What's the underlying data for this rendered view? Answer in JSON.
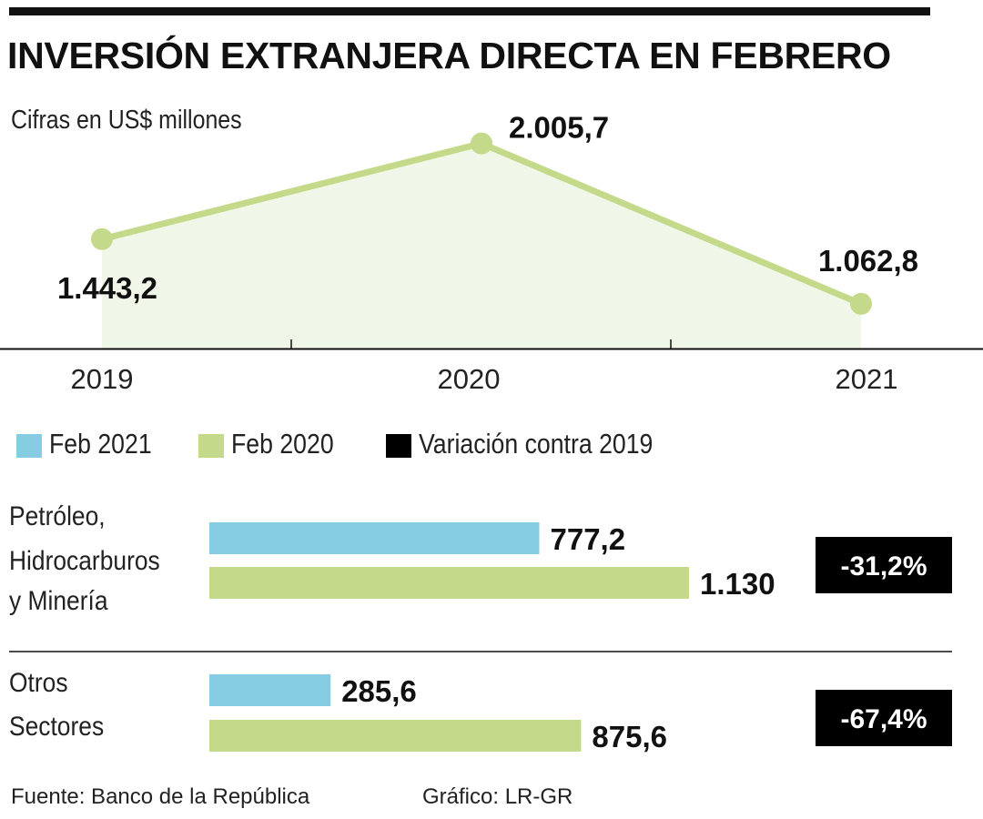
{
  "header": {
    "title": "INVERSIÓN EXTRANJERA DIRECTA EN FEBRERO",
    "subtitle": "Cifras en US$ millones"
  },
  "legend": {
    "items": [
      {
        "label": "Feb 2021",
        "color": "#86cde3"
      },
      {
        "label": "Feb 2020",
        "color": "#c4d98a"
      },
      {
        "label": "Variación contra 2019",
        "color": "#000000"
      }
    ]
  },
  "footer": {
    "source": "Fuente: Banco de la República",
    "credit": "Gráfico: LR-GR"
  },
  "colors": {
    "line": "#c4d98a",
    "area_fill": "#f1f7e8",
    "feb_2021": "#86cde3",
    "feb_2020": "#c4d98a",
    "variation_box": "#000000",
    "text": "#111111"
  },
  "chart_data": [
    {
      "type": "line",
      "x": [
        "2019",
        "2020",
        "2021"
      ],
      "series": [
        {
          "values": [
            1443.2,
            2005.7,
            1062.8
          ],
          "labels": [
            "1.443,2",
            "2.005,7",
            "1.062,8"
          ]
        }
      ],
      "ylim": [
        800,
        2100
      ],
      "grid": false
    },
    {
      "type": "bar",
      "orientation": "horizontal",
      "categories": [
        "Petróleo, Hidrocarburos y Minería",
        "Otros Sectores"
      ],
      "category_lines": [
        [
          "Petróleo,",
          "Hidrocarburos",
          "y Minería"
        ],
        [
          "Otros",
          "Sectores"
        ]
      ],
      "series": [
        {
          "name": "Feb 2021",
          "values": [
            777.2,
            285.6
          ],
          "labels": [
            "777,2",
            "285,6"
          ]
        },
        {
          "name": "Feb 2020",
          "values": [
            1130,
            875.6
          ],
          "labels": [
            "1.130",
            "875,6"
          ]
        }
      ],
      "variation": {
        "name": "Variación contra 2019",
        "labels": [
          "-31,2%",
          "-67,4%"
        ]
      },
      "xlim": [
        0,
        1130
      ]
    }
  ]
}
